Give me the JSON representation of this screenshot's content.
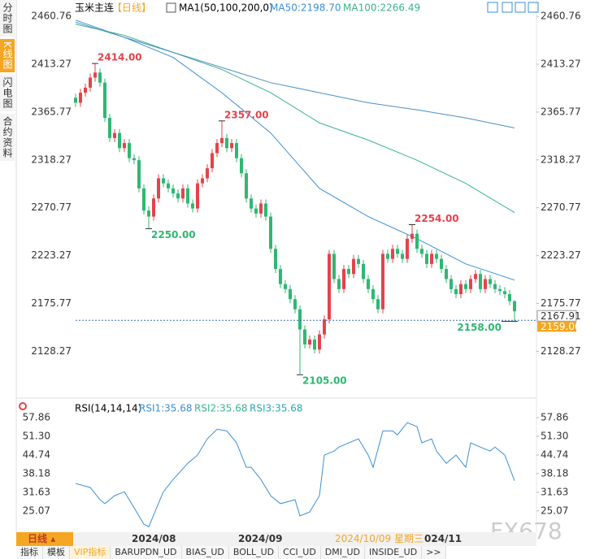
{
  "chart_data": [
    {
      "type": "candlestick",
      "title": "玉米主连",
      "period": "【日线】",
      "indicator": "MA1(50,100,200,0)",
      "up_color": "#e5434b",
      "down_color": "#2eb872",
      "grid": false,
      "open": [
        2380,
        2375,
        2385,
        2390,
        2400,
        2405,
        2395,
        2360,
        2340,
        2345,
        2330,
        2335,
        2320,
        2318,
        2290,
        2268,
        2262,
        2280,
        2300,
        2295,
        2290,
        2285,
        2280,
        2290,
        2275,
        2270,
        2295,
        2300,
        2310,
        2325,
        2335,
        2340,
        2330,
        2335,
        2320,
        2305,
        2280,
        2270,
        2265,
        2275,
        2262,
        2230,
        2210,
        2195,
        2190,
        2180,
        2170,
        2150,
        2135,
        2140,
        2130,
        2145,
        2160,
        2225,
        2200,
        2190,
        2210,
        2205,
        2220,
        2215,
        2200,
        2190,
        2180,
        2170,
        2225,
        2220,
        2230,
        2225,
        2220,
        2240,
        2245,
        2230,
        2225,
        2215,
        2225,
        2220,
        2210,
        2200,
        2190,
        2185,
        2195,
        2190,
        2200,
        2205,
        2190,
        2200,
        2195,
        2190,
        2188,
        2185,
        2178
      ],
      "high": [
        2384,
        2389,
        2394,
        2404,
        2414,
        2409,
        2399,
        2364,
        2349,
        2349,
        2339,
        2339,
        2324,
        2322,
        2294,
        2272,
        2284,
        2304,
        2304,
        2299,
        2294,
        2289,
        2294,
        2294,
        2279,
        2299,
        2304,
        2314,
        2329,
        2339,
        2357,
        2344,
        2339,
        2339,
        2324,
        2309,
        2284,
        2274,
        2279,
        2279,
        2266,
        2234,
        2214,
        2199,
        2194,
        2184,
        2174,
        2154,
        2144,
        2144,
        2149,
        2164,
        2229,
        2229,
        2204,
        2214,
        2214,
        2224,
        2224,
        2219,
        2204,
        2194,
        2184,
        2229,
        2229,
        2234,
        2234,
        2229,
        2244,
        2254,
        2249,
        2234,
        2229,
        2229,
        2229,
        2224,
        2214,
        2204,
        2194,
        2199,
        2199,
        2204,
        2209,
        2209,
        2204,
        2204,
        2199,
        2194,
        2192,
        2189,
        2179
      ],
      "low": [
        2371,
        2371,
        2381,
        2386,
        2396,
        2391,
        2356,
        2336,
        2336,
        2326,
        2326,
        2316,
        2314,
        2286,
        2264,
        2250,
        2258,
        2276,
        2291,
        2286,
        2281,
        2276,
        2276,
        2271,
        2266,
        2266,
        2291,
        2296,
        2306,
        2321,
        2331,
        2326,
        2326,
        2316,
        2301,
        2276,
        2266,
        2261,
        2261,
        2258,
        2226,
        2206,
        2191,
        2186,
        2176,
        2166,
        2105,
        2131,
        2131,
        2126,
        2126,
        2141,
        2156,
        2196,
        2186,
        2186,
        2201,
        2201,
        2211,
        2196,
        2186,
        2176,
        2166,
        2166,
        2216,
        2216,
        2221,
        2216,
        2216,
        2236,
        2226,
        2221,
        2211,
        2211,
        2216,
        2206,
        2196,
        2186,
        2181,
        2181,
        2186,
        2186,
        2196,
        2186,
        2186,
        2191,
        2186,
        2184,
        2181,
        2174,
        2158
      ],
      "close": [
        2375,
        2385,
        2390,
        2400,
        2405,
        2395,
        2360,
        2340,
        2345,
        2330,
        2335,
        2320,
        2318,
        2290,
        2268,
        2262,
        2280,
        2300,
        2295,
        2290,
        2285,
        2280,
        2290,
        2275,
        2270,
        2295,
        2300,
        2310,
        2325,
        2335,
        2340,
        2330,
        2335,
        2320,
        2305,
        2280,
        2270,
        2265,
        2275,
        2262,
        2230,
        2210,
        2195,
        2190,
        2180,
        2170,
        2150,
        2135,
        2140,
        2130,
        2145,
        2160,
        2225,
        2200,
        2190,
        2210,
        2205,
        2220,
        2215,
        2200,
        2190,
        2180,
        2170,
        2225,
        2220,
        2230,
        2225,
        2220,
        2240,
        2245,
        2230,
        2225,
        2215,
        2225,
        2220,
        2210,
        2200,
        2190,
        2185,
        2195,
        2190,
        2200,
        2205,
        2190,
        2200,
        2195,
        2190,
        2188,
        2185,
        2178,
        2168
      ],
      "series": [
        {
          "name": "MA50:2198.70",
          "color": "#3b8fd4",
          "x": [
            0,
            10,
            20,
            30,
            40,
            50,
            60,
            70,
            80,
            90
          ],
          "values": [
            2457,
            2440,
            2420,
            2385,
            2345,
            2290,
            2262,
            2240,
            2215,
            2199
          ]
        },
        {
          "name": "MA100:2266.49",
          "color": "#3cb38a",
          "x": [
            0,
            10,
            20,
            30,
            40,
            50,
            60,
            70,
            80,
            90
          ],
          "values": [
            2453,
            2442,
            2425,
            2408,
            2385,
            2355,
            2338,
            2318,
            2295,
            2266
          ]
        },
        {
          "color": "#4a8fc4",
          "x": [
            0,
            10,
            20,
            30,
            40,
            50,
            60,
            70,
            80,
            90
          ],
          "values": [
            2455,
            2440,
            2425,
            2410,
            2395,
            2385,
            2375,
            2368,
            2360,
            2350
          ]
        }
      ],
      "annotations": [
        {
          "value": 2414,
          "label": "2414.00"
        },
        {
          "value": 2357,
          "label": "2357.00"
        },
        {
          "value": 2250,
          "label": "2250.00"
        },
        {
          "value": 2105,
          "label": "2105.00"
        },
        {
          "value": 2254,
          "label": "2254.00"
        },
        {
          "value": 2158,
          "label": "2158.00"
        }
      ],
      "last_price": 2167.91,
      "ref_price": {
        "value": 2159,
        "label": "2159.00"
      },
      "ylim": [
        2085,
        2473
      ],
      "yticks": [
        2460.76,
        2413.27,
        2365.77,
        2318.27,
        2270.77,
        2223.27,
        2175.77,
        2128.27
      ]
    },
    {
      "type": "line",
      "indicator": "RSI(14,14,14)",
      "series": [
        {
          "name": "RSI1:35.68",
          "color": "#3b8fd4",
          "x": [
            0,
            3,
            5,
            6,
            8,
            10,
            11,
            14,
            15,
            18,
            20,
            23,
            25,
            27,
            29,
            31,
            33,
            35,
            36,
            38,
            40,
            42,
            45,
            46,
            48,
            50,
            51,
            53,
            54,
            56,
            58,
            60,
            61,
            63,
            65,
            66,
            68,
            70,
            71,
            73,
            74,
            76,
            78,
            80,
            81,
            83,
            85,
            86,
            88,
            90
          ],
          "values": [
            34.7,
            33.3,
            29.0,
            27.6,
            30.4,
            31.8,
            29.0,
            20.4,
            19.5,
            31.8,
            36.1,
            41.8,
            44.7,
            50.4,
            53.8,
            53.2,
            49.0,
            40.4,
            40.4,
            36.1,
            30.4,
            27.6,
            29.0,
            23.3,
            24.7,
            30.4,
            44.7,
            46.1,
            47.5,
            49.0,
            50.4,
            44.7,
            40.4,
            53.2,
            53.2,
            51.8,
            56.1,
            54.7,
            49.0,
            50.4,
            46.1,
            41.8,
            44.7,
            40.4,
            49.0,
            47.5,
            46.1,
            47.5,
            44.7,
            35.68
          ]
        }
      ],
      "other_legend": [
        {
          "label": "RSI2:35.68",
          "color": "#3cb38a"
        },
        {
          "label": "RSI3:35.68",
          "color": "#2aa8b8"
        }
      ],
      "ylim": [
        19,
        63.3
      ],
      "yticks": [
        57.86,
        {
          "value": 51.3,
          "label": "51.30"
        },
        44.74,
        38.18,
        31.63,
        25.07
      ]
    }
  ],
  "ui": {
    "sidebar_tabs": [
      "分时图",
      "K线图",
      "闪电图",
      "合约资料"
    ],
    "active_tab": "K线图",
    "period_button": "日线",
    "x_axis_labels": [
      "2024/08",
      "2024/09",
      "024/11"
    ],
    "crosshair_date": "2024/10/09 星期三",
    "toolbar": [
      "指标",
      "模板",
      "VIP指标",
      "BARUPDN_UD",
      "BIAS_UD",
      "BOLL_UD",
      "CCI_UD",
      "DMI_UD",
      "INSIDE_UD",
      ">>"
    ],
    "active_tool": "VIP指标",
    "watermark": "FX678"
  }
}
